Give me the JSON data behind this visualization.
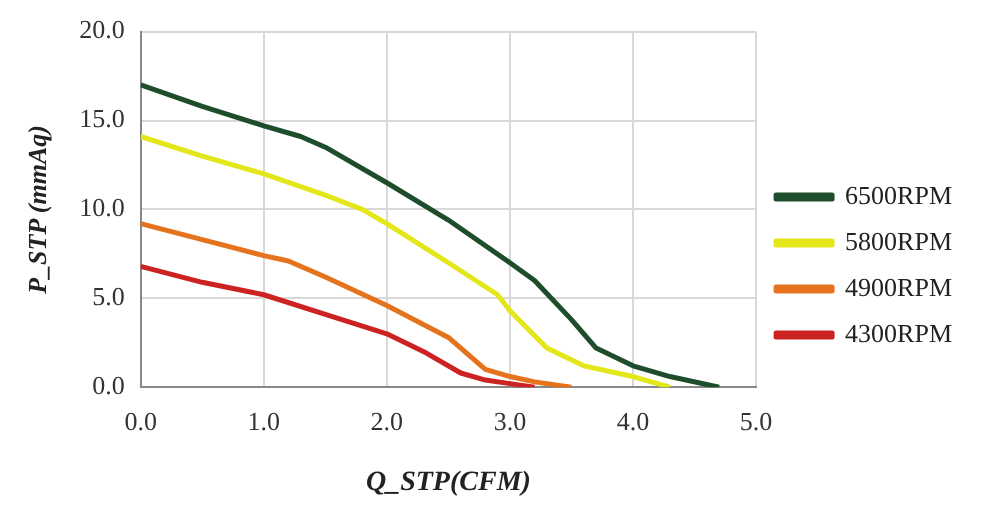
{
  "chart_data": {
    "type": "line",
    "xlabel": "Q_STP(CFM)",
    "ylabel": "P_STP (mmAq)",
    "xlim": [
      0,
      5
    ],
    "xticks": [
      {
        "value": 0,
        "label": "0.0"
      },
      {
        "value": 1,
        "label": "1.0"
      },
      {
        "value": 2,
        "label": "2.0"
      },
      {
        "value": 3,
        "label": "3.0"
      },
      {
        "value": 4,
        "label": "4.0"
      },
      {
        "value": 5,
        "label": "5.0"
      }
    ],
    "ylim": [
      0,
      20
    ],
    "yticks": [
      {
        "value": 0,
        "label": "0.0"
      },
      {
        "value": 5,
        "label": "5.0"
      },
      {
        "value": 10,
        "label": "10.0"
      },
      {
        "value": 15,
        "label": "15.0"
      },
      {
        "value": 20,
        "label": "20.0"
      }
    ],
    "grid": true,
    "legend": "right",
    "marker": "none",
    "line_style": "solid",
    "series": [
      {
        "name": "6500RPM",
        "color": "#1e4d2b",
        "x": [
          0,
          0.5,
          1.0,
          1.3,
          1.5,
          2.0,
          2.5,
          3.0,
          3.2,
          3.5,
          3.7,
          4.0,
          4.3,
          4.7
        ],
        "values": [
          17,
          15.8,
          14.7,
          14.1,
          13.5,
          11.5,
          9.4,
          7.0,
          6.0,
          3.8,
          2.2,
          1.2,
          0.6,
          0
        ]
      },
      {
        "name": "5800RPM",
        "color": "#e3e619",
        "x": [
          0,
          0.5,
          1.0,
          1.5,
          1.8,
          2.0,
          2.5,
          2.9,
          3.0,
          3.3,
          3.6,
          4.0,
          4.3
        ],
        "values": [
          14.1,
          13,
          12,
          10.8,
          10,
          9.2,
          7,
          5.2,
          4.3,
          2.2,
          1.2,
          0.6,
          0
        ]
      },
      {
        "name": "4900RPM",
        "color": "#e5731e",
        "x": [
          0,
          0.5,
          1.0,
          1.2,
          1.5,
          2.0,
          2.5,
          2.8,
          3.0,
          3.2,
          3.5
        ],
        "values": [
          9.2,
          8.3,
          7.4,
          7.1,
          6.2,
          4.6,
          2.8,
          1.0,
          0.6,
          0.3,
          0
        ]
      },
      {
        "name": "4300RPM",
        "color": "#cc2222",
        "x": [
          0,
          0.5,
          1.0,
          1.5,
          2.0,
          2.3,
          2.6,
          2.8,
          3.0,
          3.2
        ],
        "values": [
          6.8,
          5.9,
          5.2,
          4.1,
          3.0,
          2.0,
          0.8,
          0.4,
          0.2,
          0
        ]
      }
    ]
  }
}
